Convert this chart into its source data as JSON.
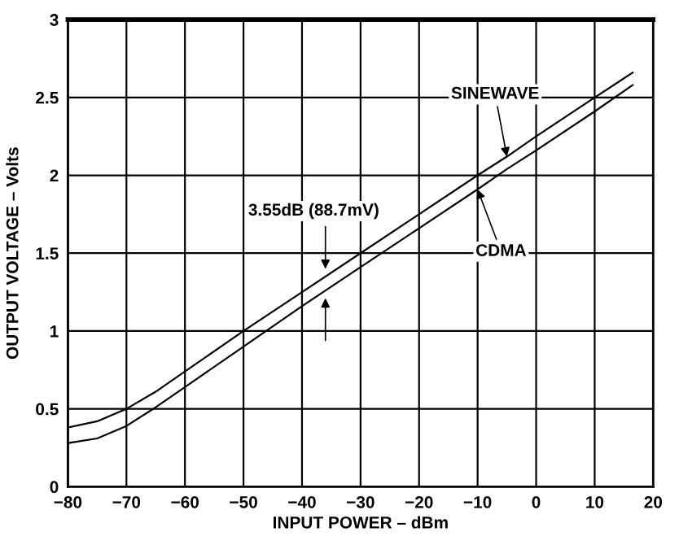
{
  "chart_data": {
    "type": "line",
    "xlabel": "INPUT POWER – dBm",
    "ylabel": "OUTPUT VOLTAGE – Volts",
    "xlim": [
      -80,
      20
    ],
    "xticks": [
      -80,
      -70,
      -60,
      -50,
      -40,
      -30,
      -20,
      -10,
      0,
      10,
      20
    ],
    "ylim": [
      0,
      3
    ],
    "yticks": [
      0,
      0.5,
      1,
      1.5,
      2,
      2.5,
      3
    ],
    "grid": true,
    "legend": false,
    "marker": "none",
    "line_style": "solid",
    "x": [
      -80,
      -75,
      -70,
      -65,
      -60,
      -50,
      -40,
      -30,
      -20,
      -10,
      -5,
      0,
      10,
      16.5
    ],
    "series": [
      {
        "name": "SINEWAVE",
        "color": "#000000",
        "values": [
          0.38,
          0.42,
          0.5,
          0.61,
          0.74,
          1.0,
          1.25,
          1.5,
          1.75,
          2.0,
          2.12,
          2.25,
          2.5,
          2.66
        ]
      },
      {
        "name": "CDMA",
        "color": "#000000",
        "values": [
          0.28,
          0.31,
          0.39,
          0.51,
          0.64,
          0.9,
          1.16,
          1.41,
          1.66,
          1.91,
          2.04,
          2.16,
          2.41,
          2.58
        ]
      }
    ],
    "annotations": [
      "3.55dB (88.7mV)"
    ]
  }
}
